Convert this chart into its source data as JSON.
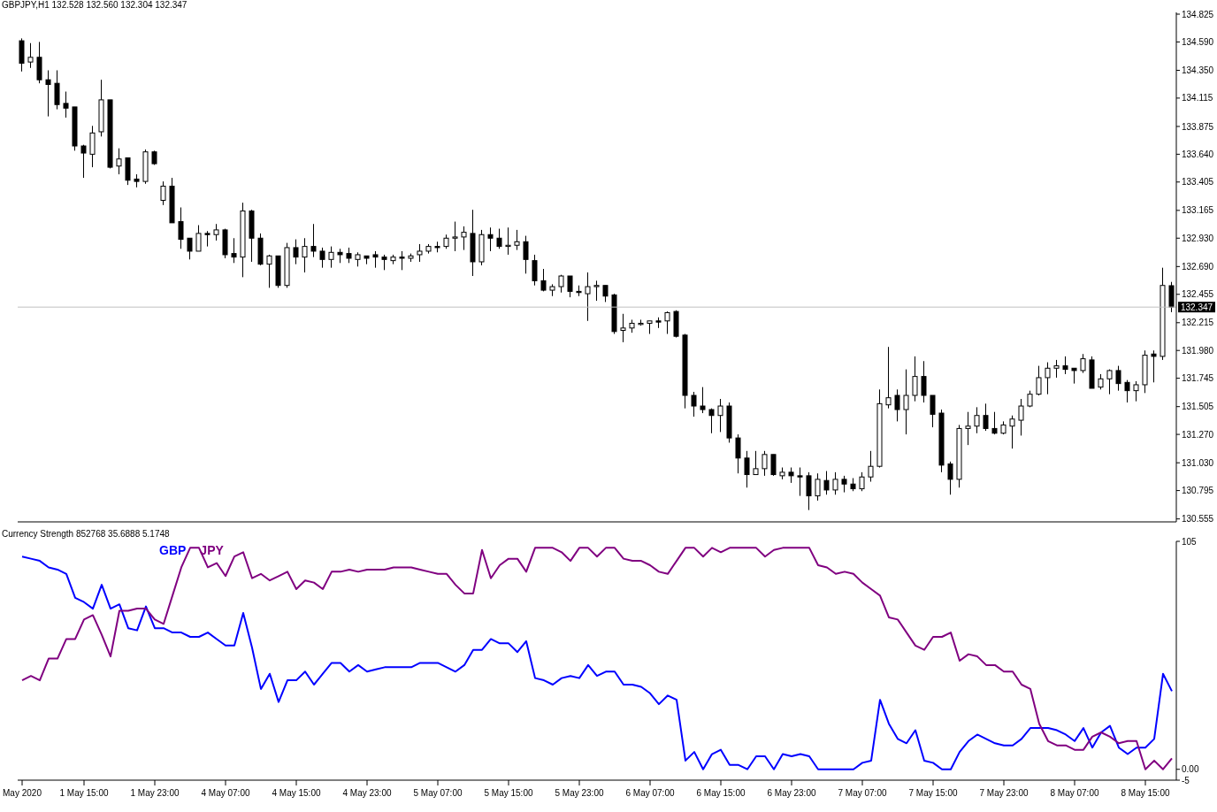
{
  "chart_data": [
    {
      "type": "candlestick",
      "title": "GBPJPY,H1 132.528 132.560 132.304 132.347",
      "tick_labels": "y",
      "ohlc": [
        [
          134.6,
          134.62,
          134.34,
          134.41
        ],
        [
          134.42,
          134.58,
          134.37,
          134.46
        ],
        [
          134.46,
          134.59,
          134.24,
          134.27
        ],
        [
          134.27,
          134.35,
          133.96,
          134.23
        ],
        [
          134.24,
          134.35,
          134.02,
          134.06
        ],
        [
          134.07,
          134.17,
          133.95,
          134.03
        ],
        [
          134.04,
          134.04,
          133.67,
          133.71
        ],
        [
          133.71,
          133.72,
          133.44,
          133.65
        ],
        [
          133.64,
          133.88,
          133.53,
          133.82
        ],
        [
          133.83,
          134.27,
          133.79,
          134.1
        ],
        [
          134.1,
          134.1,
          133.52,
          133.53
        ],
        [
          133.54,
          133.69,
          133.47,
          133.6
        ],
        [
          133.61,
          133.61,
          133.38,
          133.42
        ],
        [
          133.43,
          133.47,
          133.36,
          133.41
        ],
        [
          133.41,
          133.68,
          133.39,
          133.66
        ],
        [
          133.66,
          133.67,
          133.55,
          133.56
        ],
        [
          133.25,
          133.41,
          133.21,
          133.37
        ],
        [
          133.37,
          133.44,
          133.06,
          133.06
        ],
        [
          133.07,
          133.19,
          132.84,
          132.92
        ],
        [
          132.93,
          132.93,
          132.75,
          132.82
        ],
        [
          132.82,
          133.04,
          132.82,
          132.97
        ],
        [
          132.97,
          132.99,
          132.86,
          132.96
        ],
        [
          132.96,
          133.05,
          132.91,
          133.0
        ],
        [
          133.0,
          133.01,
          132.76,
          132.79
        ],
        [
          132.8,
          132.93,
          132.72,
          132.77
        ],
        [
          132.77,
          133.23,
          132.6,
          133.16
        ],
        [
          133.16,
          133.17,
          132.73,
          132.93
        ],
        [
          132.93,
          132.97,
          132.7,
          132.71
        ],
        [
          132.71,
          132.79,
          132.51,
          132.78
        ],
        [
          132.78,
          132.78,
          132.51,
          132.53
        ],
        [
          132.53,
          132.89,
          132.51,
          132.85
        ],
        [
          132.85,
          132.92,
          132.71,
          132.77
        ],
        [
          132.77,
          132.93,
          132.64,
          132.86
        ],
        [
          132.86,
          133.05,
          132.77,
          132.82
        ],
        [
          132.82,
          132.85,
          132.68,
          132.75
        ],
        [
          132.75,
          132.86,
          132.68,
          132.81
        ],
        [
          132.81,
          132.84,
          132.72,
          132.79
        ],
        [
          132.8,
          132.85,
          132.72,
          132.76
        ],
        [
          132.75,
          132.81,
          132.69,
          132.79
        ],
        [
          132.78,
          132.78,
          132.71,
          132.76
        ],
        [
          132.79,
          132.82,
          132.68,
          132.77
        ],
        [
          132.77,
          132.79,
          132.66,
          132.75
        ],
        [
          132.74,
          132.79,
          132.71,
          132.77
        ],
        [
          132.77,
          132.82,
          132.66,
          132.76
        ],
        [
          132.76,
          132.8,
          132.73,
          132.78
        ],
        [
          132.79,
          132.88,
          132.73,
          132.82
        ],
        [
          132.82,
          132.88,
          132.8,
          132.86
        ],
        [
          132.86,
          132.9,
          132.81,
          132.85
        ],
        [
          132.86,
          132.96,
          132.84,
          132.93
        ],
        [
          132.93,
          133.07,
          132.82,
          132.94
        ],
        [
          132.94,
          133.03,
          132.83,
          132.98
        ],
        [
          132.97,
          133.17,
          132.61,
          132.73
        ],
        [
          132.73,
          133.0,
          132.7,
          132.96
        ],
        [
          132.96,
          133.02,
          132.82,
          132.93
        ],
        [
          132.93,
          133.01,
          132.84,
          132.86
        ],
        [
          132.86,
          133.02,
          132.79,
          132.87
        ],
        [
          132.87,
          133.0,
          132.83,
          132.9
        ],
        [
          132.9,
          132.95,
          132.63,
          132.75
        ],
        [
          132.74,
          132.79,
          132.53,
          132.57
        ],
        [
          132.57,
          132.67,
          132.48,
          132.49
        ],
        [
          132.49,
          132.54,
          132.44,
          132.52
        ],
        [
          132.52,
          132.62,
          132.47,
          132.61
        ],
        [
          132.61,
          132.61,
          132.43,
          132.48
        ],
        [
          132.48,
          132.53,
          132.44,
          132.47
        ],
        [
          132.46,
          132.64,
          132.23,
          132.52
        ],
        [
          132.52,
          132.57,
          132.4,
          132.53
        ],
        [
          132.53,
          132.53,
          132.39,
          132.44
        ],
        [
          132.45,
          132.46,
          132.12,
          132.14
        ],
        [
          132.15,
          132.29,
          132.05,
          132.17
        ],
        [
          132.17,
          132.24,
          132.13,
          132.21
        ],
        [
          132.2,
          132.24,
          132.19,
          132.21
        ],
        [
          132.21,
          132.23,
          132.12,
          132.23
        ],
        [
          132.23,
          132.26,
          132.17,
          132.22
        ],
        [
          132.23,
          132.31,
          132.12,
          132.3
        ],
        [
          132.31,
          132.32,
          132.09,
          132.1
        ],
        [
          132.11,
          132.12,
          131.49,
          131.6
        ],
        [
          131.6,
          131.63,
          131.42,
          131.51
        ],
        [
          131.51,
          131.67,
          131.45,
          131.48
        ],
        [
          131.48,
          131.49,
          131.28,
          131.43
        ],
        [
          131.43,
          131.57,
          131.29,
          131.51
        ],
        [
          131.51,
          131.54,
          131.2,
          131.24
        ],
        [
          131.24,
          131.27,
          130.94,
          131.07
        ],
        [
          131.07,
          131.13,
          130.82,
          130.93
        ],
        [
          130.93,
          131.13,
          130.93,
          130.98
        ],
        [
          130.98,
          131.13,
          130.92,
          131.1
        ],
        [
          131.1,
          131.1,
          130.92,
          130.93
        ],
        [
          130.92,
          130.99,
          130.89,
          130.95
        ],
        [
          130.95,
          130.99,
          130.86,
          130.92
        ],
        [
          130.92,
          130.99,
          130.75,
          130.91
        ],
        [
          130.92,
          130.95,
          130.63,
          130.75
        ],
        [
          130.75,
          130.94,
          130.71,
          130.89
        ],
        [
          130.88,
          130.96,
          130.76,
          130.8
        ],
        [
          130.8,
          130.95,
          130.76,
          130.89
        ],
        [
          130.89,
          130.92,
          130.78,
          130.85
        ],
        [
          130.85,
          130.9,
          130.79,
          130.81
        ],
        [
          130.81,
          130.95,
          130.79,
          130.91
        ],
        [
          130.91,
          131.13,
          130.87,
          131.0
        ],
        [
          131.0,
          131.65,
          130.99,
          131.53
        ],
        [
          131.52,
          132.01,
          131.49,
          131.58
        ],
        [
          131.6,
          131.65,
          131.38,
          131.48
        ],
        [
          131.48,
          131.82,
          131.27,
          131.6
        ],
        [
          131.6,
          131.93,
          131.55,
          131.76
        ],
        [
          131.76,
          131.89,
          131.54,
          131.6
        ],
        [
          131.6,
          131.6,
          131.33,
          131.44
        ],
        [
          131.45,
          131.48,
          130.95,
          131.01
        ],
        [
          131.02,
          131.04,
          130.76,
          130.89
        ],
        [
          130.89,
          131.35,
          130.82,
          131.32
        ],
        [
          131.32,
          131.46,
          131.18,
          131.34
        ],
        [
          131.34,
          131.5,
          131.28,
          131.43
        ],
        [
          131.43,
          131.53,
          131.3,
          131.32
        ],
        [
          131.32,
          131.46,
          131.27,
          131.28
        ],
        [
          131.28,
          131.38,
          131.27,
          131.35
        ],
        [
          131.34,
          131.43,
          131.15,
          131.4
        ],
        [
          131.39,
          131.57,
          131.26,
          131.51
        ],
        [
          131.51,
          131.64,
          131.5,
          131.61
        ],
        [
          131.61,
          131.85,
          131.6,
          131.75
        ],
        [
          131.75,
          131.88,
          131.61,
          131.83
        ],
        [
          131.83,
          131.9,
          131.75,
          131.85
        ],
        [
          131.85,
          131.93,
          131.78,
          131.82
        ],
        [
          131.83,
          131.83,
          131.7,
          131.81
        ],
        [
          131.81,
          131.95,
          131.79,
          131.91
        ],
        [
          131.9,
          131.93,
          131.66,
          131.66
        ],
        [
          131.67,
          131.78,
          131.65,
          131.74
        ],
        [
          131.74,
          131.82,
          131.61,
          131.81
        ],
        [
          131.81,
          131.85,
          131.64,
          131.7
        ],
        [
          131.71,
          131.73,
          131.54,
          131.64
        ],
        [
          131.64,
          131.72,
          131.55,
          131.69
        ],
        [
          131.69,
          131.98,
          131.62,
          131.94
        ],
        [
          131.95,
          131.98,
          131.71,
          131.93
        ],
        [
          131.93,
          132.68,
          131.9,
          132.53
        ],
        [
          132.528,
          132.56,
          132.304,
          132.347
        ]
      ],
      "ylim": [
        130.53,
        134.84
      ],
      "yticks": [
        {
          "value": 134.825,
          "label": "134.825"
        },
        {
          "value": 134.59,
          "label": "134.590"
        },
        {
          "value": 134.35,
          "label": "134.350"
        },
        {
          "value": 134.115,
          "label": "134.115"
        },
        {
          "value": 133.875,
          "label": "133.875"
        },
        {
          "value": 133.64,
          "label": "133.640"
        },
        {
          "value": 133.405,
          "label": "133.405"
        },
        {
          "value": 133.165,
          "label": "133.165"
        },
        {
          "value": 132.93,
          "label": "132.930"
        },
        {
          "value": 132.69,
          "label": "132.690"
        },
        {
          "value": 132.455,
          "label": "132.455"
        },
        {
          "value": 132.215,
          "label": "132.215"
        },
        {
          "value": 131.98,
          "label": "131.980"
        },
        {
          "value": 131.745,
          "label": "131.745"
        },
        {
          "value": 131.505,
          "label": "131.505"
        },
        {
          "value": 131.27,
          "label": "131.270"
        },
        {
          "value": 131.03,
          "label": "131.030"
        },
        {
          "value": 130.795,
          "label": "130.795"
        },
        {
          "value": 130.555,
          "label": "130.555"
        }
      ],
      "ref_lines": [
        {
          "axis": "y",
          "value": 132.347,
          "label": "132.347",
          "color": "#c0c0c0"
        }
      ]
    },
    {
      "type": "line",
      "title": "Currency Strength 852768 35.6888 5.1748",
      "legend": "top left",
      "marker": "none",
      "categories": [
        "May 2020",
        null,
        null,
        null,
        null,
        null,
        null,
        "1 May 15:00",
        null,
        null,
        null,
        null,
        null,
        null,
        null,
        "1 May 23:00",
        null,
        null,
        null,
        null,
        null,
        null,
        null,
        "4 May 07:00",
        null,
        null,
        null,
        null,
        null,
        null,
        null,
        "4 May 15:00",
        null,
        null,
        null,
        null,
        null,
        null,
        null,
        "4 May 23:00",
        null,
        null,
        null,
        null,
        null,
        null,
        null,
        "5 May 07:00",
        null,
        null,
        null,
        null,
        null,
        null,
        null,
        "5 May 15:00",
        null,
        null,
        null,
        null,
        null,
        null,
        null,
        "5 May 23:00",
        null,
        null,
        null,
        null,
        null,
        null,
        null,
        "6 May 07:00",
        null,
        null,
        null,
        null,
        null,
        null,
        null,
        "6 May 15:00",
        null,
        null,
        null,
        null,
        null,
        null,
        null,
        "6 May 23:00",
        null,
        null,
        null,
        null,
        null,
        null,
        null,
        "7 May 07:00",
        null,
        null,
        null,
        null,
        null,
        null,
        null,
        "7 May 15:00",
        null,
        null,
        null,
        null,
        null,
        null,
        null,
        "7 May 23:00",
        null,
        null,
        null,
        null,
        null,
        null,
        null,
        "8 May 07:00",
        null,
        null,
        null,
        null,
        null,
        null,
        null,
        "8 May 15:00",
        null,
        null,
        null
      ],
      "series": [
        {
          "name": "GBP",
          "color": "#0000ff",
          "values": [
            98,
            97,
            96,
            93,
            92,
            90,
            79,
            77,
            74,
            85,
            74,
            76,
            65,
            64,
            75,
            65,
            65,
            63,
            63,
            61,
            61,
            63,
            60,
            57,
            57,
            72,
            56,
            37,
            44,
            31,
            41,
            41,
            45,
            39,
            44,
            49,
            49,
            45,
            48,
            45,
            46,
            47,
            47,
            47,
            47,
            49,
            49,
            49,
            47,
            45,
            48,
            55,
            55,
            60,
            58,
            58,
            54,
            59,
            42,
            41,
            39,
            42,
            43,
            42,
            48,
            43,
            45,
            45,
            39,
            39,
            38,
            35,
            30,
            34,
            32,
            4,
            8,
            0,
            7,
            9,
            2,
            2,
            0,
            6,
            6,
            0,
            7,
            6,
            7,
            6,
            0,
            0,
            0,
            0,
            0,
            3,
            4,
            32,
            21,
            14,
            12,
            18,
            4,
            3,
            0,
            0,
            8,
            13,
            16,
            14,
            12,
            11,
            11,
            14,
            19,
            19,
            19,
            18,
            16,
            13,
            19,
            10,
            17,
            20,
            10,
            7,
            10,
            10,
            14,
            44,
            36
          ]
        },
        {
          "name": "JPY",
          "color": "#800080",
          "values": [
            41,
            43,
            41,
            51,
            51,
            60,
            60,
            69,
            71,
            62,
            52,
            73,
            73,
            74,
            74,
            69,
            67,
            80,
            93,
            102,
            102,
            93,
            95,
            89,
            98,
            100,
            88,
            90,
            87,
            89,
            91,
            83,
            87,
            86,
            83,
            91,
            91,
            92,
            91,
            92,
            92,
            92,
            93,
            93,
            93,
            92,
            91,
            90,
            90,
            85,
            81,
            81,
            101,
            88,
            94,
            97,
            97,
            91,
            102,
            102,
            102,
            100,
            96,
            102,
            102,
            98,
            102,
            102,
            97,
            96,
            96,
            94,
            91,
            90,
            96,
            102,
            102,
            98,
            102,
            100,
            102,
            102,
            102,
            102,
            98,
            101,
            102,
            102,
            102,
            102,
            94,
            93,
            90,
            91,
            90,
            86,
            83,
            80,
            70,
            69,
            63,
            57,
            55,
            61,
            61,
            63,
            50,
            53,
            52,
            48,
            48,
            45,
            45,
            39,
            37,
            21,
            13,
            11,
            11,
            9,
            9,
            15,
            17,
            15,
            12,
            13,
            13,
            0,
            4,
            0,
            5
          ]
        }
      ],
      "ylim": [
        -5,
        105
      ],
      "yticks": [
        105,
        {
          "value": 0,
          "label": "0.00"
        },
        -5
      ]
    }
  ]
}
